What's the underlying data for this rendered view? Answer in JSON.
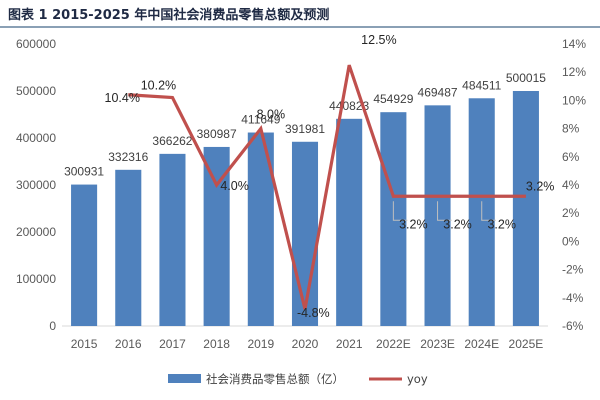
{
  "title": "图表 1  2015-2025 年中国社会消费品零售总额及预测",
  "chart_data": {
    "type": "bar",
    "categories": [
      "2015",
      "2016",
      "2017",
      "2018",
      "2019",
      "2020",
      "2021",
      "2022E",
      "2023E",
      "2024E",
      "2025E"
    ],
    "series": [
      {
        "name": "社会消费品零售总额（亿）",
        "type": "bar",
        "axis": "left",
        "color": "#4f81bd",
        "values": [
          300931,
          332316,
          366262,
          380987,
          411649,
          391981,
          440823,
          454929,
          469487,
          484511,
          500015
        ]
      },
      {
        "name": "yoy",
        "type": "line",
        "axis": "right",
        "color": "#c0504d",
        "values": [
          null,
          10.4,
          10.2,
          4.0,
          8.0,
          -4.8,
          12.5,
          3.2,
          3.2,
          3.2,
          3.2
        ]
      }
    ],
    "bar_labels": [
      "300931",
      "332316",
      "366262",
      "380987",
      "411649",
      "391981",
      "440823",
      "454929",
      "469487",
      "484511",
      "500015"
    ],
    "line_labels": [
      "",
      "10.4%",
      "10.2%",
      "4.0%",
      "8.0%",
      "-4.8%",
      "12.5%",
      "3.2%",
      "3.2%",
      "3.2%",
      "3.2%"
    ],
    "y_left": {
      "ylim": [
        0,
        600000
      ],
      "ticks": [
        "0",
        "100000",
        "200000",
        "300000",
        "400000",
        "500000",
        "600000"
      ]
    },
    "y_right": {
      "ylim": [
        -6,
        14
      ],
      "ticks": [
        "-6%",
        "-4%",
        "-2%",
        "0%",
        "2%",
        "4%",
        "6%",
        "8%",
        "10%",
        "12%",
        "14%"
      ]
    },
    "grid": false,
    "legend": "bottom"
  }
}
